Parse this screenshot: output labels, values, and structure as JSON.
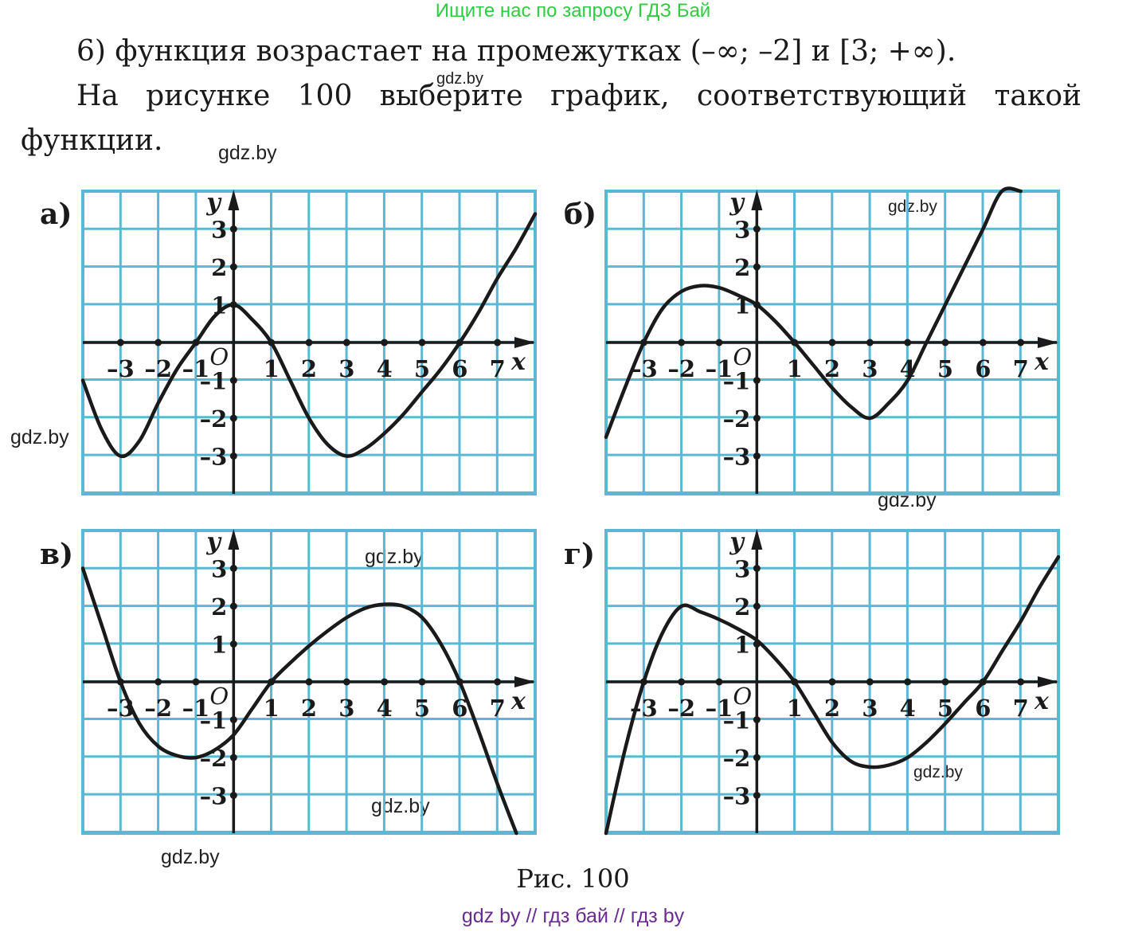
{
  "banner": "Ищите нас по запросу ГДЗ Бай",
  "text": {
    "line1": "6) функция возрастает на промежутках (–∞; –2] и [3; +∞).",
    "line2": "На рисунке 100 выберите график, соответствующий такой",
    "line3": "функции."
  },
  "watermarks": [
    "gdz.by",
    "gdz.by",
    "gdz.by",
    "gdz.by",
    "gdz.by",
    "gdz.by",
    "gdz.by",
    "gdz.by",
    "gdz.by",
    "gdz.by"
  ],
  "caption": "Рис. 100",
  "footer": "gdz by  //  гдз бай  //  гдз by",
  "colors": {
    "grid": "#5bb8d4",
    "curve": "#1a1a1a",
    "banner": "#2ecc40",
    "footer": "#6a2c91"
  },
  "chart_data": [
    {
      "type": "line",
      "panel_label": "а)",
      "xlabel": "x",
      "ylabel": "y",
      "origin_label": "O",
      "xlim": [
        -4,
        8
      ],
      "ylim": [
        -4,
        4
      ],
      "xticks": [
        "–3",
        "–2",
        "–1",
        "1",
        "2",
        "3",
        "4",
        "5",
        "6",
        "7"
      ],
      "yticks": [
        "3",
        "2",
        "1",
        "–1",
        "–2",
        "–3"
      ],
      "x": [
        -4,
        -3.5,
        -3,
        -2.5,
        -2,
        -1.5,
        -1,
        -0.5,
        0,
        0.5,
        1,
        1.5,
        2,
        2.5,
        3,
        3.5,
        4,
        4.5,
        5,
        5.5,
        6,
        6.5,
        7,
        7.5,
        8
      ],
      "y": [
        -1.0,
        -2.3,
        -3.0,
        -2.6,
        -1.6,
        -0.7,
        0.0,
        0.7,
        1.0,
        0.6,
        0.0,
        -1.0,
        -2.0,
        -2.7,
        -3.0,
        -2.8,
        -2.4,
        -1.9,
        -1.3,
        -0.7,
        0.0,
        0.8,
        1.7,
        2.5,
        3.4
      ]
    },
    {
      "type": "line",
      "panel_label": "б)",
      "xlabel": "x",
      "ylabel": "y",
      "origin_label": "O",
      "xlim": [
        -4,
        8
      ],
      "ylim": [
        -4,
        4
      ],
      "xticks": [
        "–3",
        "–2",
        "–1",
        "1",
        "2",
        "3",
        "4",
        "5",
        "6",
        "7"
      ],
      "yticks": [
        "3",
        "2",
        "1",
        "–1",
        "–2",
        "–3"
      ],
      "x": [
        -4,
        -3.5,
        -3,
        -2.5,
        -2,
        -1.5,
        -1,
        -0.5,
        0,
        0.5,
        1,
        1.5,
        2,
        2.5,
        3,
        3.5,
        4,
        4.5,
        5,
        5.5,
        6,
        6.5,
        7
      ],
      "y": [
        -2.5,
        -1.2,
        0.0,
        0.9,
        1.35,
        1.5,
        1.45,
        1.25,
        1.0,
        0.55,
        0.0,
        -0.6,
        -1.2,
        -1.7,
        -2.0,
        -1.6,
        -1.0,
        0.0,
        1.0,
        2.0,
        3.0,
        4.0,
        4.0
      ]
    },
    {
      "type": "line",
      "panel_label": "в)",
      "xlabel": "x",
      "ylabel": "y",
      "origin_label": "O",
      "xlim": [
        -4,
        8
      ],
      "ylim": [
        -4,
        4
      ],
      "xticks": [
        "–3",
        "–2",
        "–1",
        "1",
        "2",
        "3",
        "4",
        "5",
        "6",
        "7"
      ],
      "yticks": [
        "3",
        "2",
        "1",
        "–1",
        "–2",
        "–3"
      ],
      "x": [
        -4,
        -3.5,
        -3,
        -2.5,
        -2,
        -1.5,
        -1,
        -0.5,
        0,
        0.5,
        1,
        1.5,
        2,
        2.5,
        3,
        3.5,
        4,
        4.5,
        5,
        5.5,
        6,
        6.5,
        7,
        7.5
      ],
      "y": [
        3.0,
        1.5,
        0.0,
        -1.1,
        -1.7,
        -1.95,
        -2.0,
        -1.8,
        -1.4,
        -0.7,
        0.0,
        0.5,
        0.95,
        1.35,
        1.7,
        1.95,
        2.05,
        2.0,
        1.7,
        1.0,
        0.0,
        -1.3,
        -2.7,
        -4.0
      ]
    },
    {
      "type": "line",
      "panel_label": "г)",
      "xlabel": "x",
      "ylabel": "y",
      "origin_label": "O",
      "xlim": [
        -4,
        8
      ],
      "ylim": [
        -4,
        4
      ],
      "xticks": [
        "–3",
        "–2",
        "–1",
        "1",
        "2",
        "3",
        "4",
        "5",
        "6",
        "7"
      ],
      "yticks": [
        "3",
        "2",
        "1",
        "–1",
        "–2",
        "–3"
      ],
      "x": [
        -4,
        -3.5,
        -3,
        -2.5,
        -2,
        -1.5,
        -1,
        -0.5,
        0,
        0.5,
        1,
        1.5,
        2,
        2.5,
        3,
        3.5,
        4,
        4.5,
        5,
        5.5,
        6,
        6.5,
        7,
        7.5,
        8
      ],
      "y": [
        -4.0,
        -1.8,
        0.0,
        1.3,
        2.0,
        1.85,
        1.65,
        1.4,
        1.1,
        0.6,
        0.0,
        -0.8,
        -1.6,
        -2.1,
        -2.25,
        -2.2,
        -2.0,
        -1.6,
        -1.1,
        -0.55,
        0.0,
        0.8,
        1.6,
        2.5,
        3.3
      ]
    }
  ]
}
